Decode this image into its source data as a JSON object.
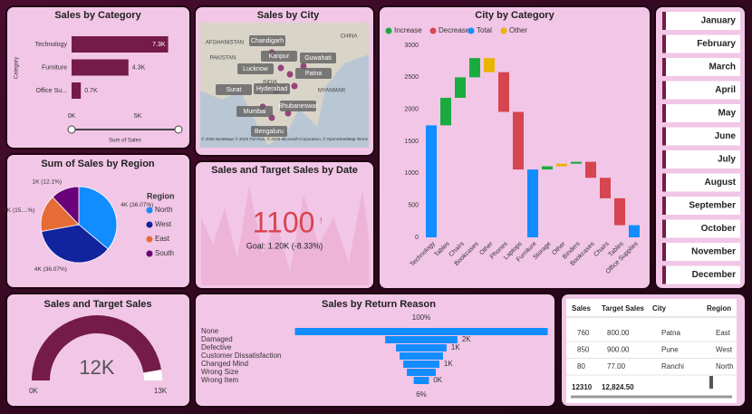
{
  "chart_data": [
    {
      "type": "hbar",
      "title": "Sales by Category",
      "categories": [
        "Technology",
        "Furniture",
        "Office Su..."
      ],
      "values": [
        7300,
        4300,
        700
      ],
      "value_labels": [
        "7.3K",
        "4.3K",
        "0.7K"
      ],
      "color": "#741b47",
      "xlim": [
        0,
        7500
      ],
      "xticks": [
        {
          "value": 0,
          "label": "0K"
        },
        {
          "value": 5000,
          "label": "5K"
        }
      ],
      "xlabel": "Sum of Sales",
      "ylabel": "Category"
    },
    {
      "type": "waterfall",
      "title": "City by Category",
      "legend": [
        {
          "name": "Increase",
          "color": "#1aab40"
        },
        {
          "name": "Decrease",
          "color": "#d64550"
        },
        {
          "name": "Total",
          "color": "#118dff"
        },
        {
          "name": "Other",
          "color": "#e8b400"
        }
      ],
      "categories": [
        "Technology",
        "Tables",
        "Chairs",
        "Bookcases",
        "Other",
        "Phones",
        "Laptops",
        "Furniture",
        "Storage",
        "Other",
        "Binders",
        "Bookcases",
        "Chairs",
        "Tables",
        "Office Supplies"
      ],
      "kinds": [
        "Total",
        "Increase",
        "Increase",
        "Increase",
        "Other",
        "Decrease",
        "Decrease",
        "Total",
        "Increase",
        "Other",
        "Increase",
        "Decrease",
        "Decrease",
        "Decrease",
        "Total"
      ],
      "values": [
        1750,
        430,
        320,
        300,
        -220,
        -620,
        -900,
        1060,
        50,
        40,
        30,
        -250,
        -320,
        -420,
        190
      ],
      "ylim": [
        0,
        3000
      ],
      "yticks": [
        0,
        500,
        1000,
        1500,
        2000,
        2500,
        3000
      ]
    },
    {
      "type": "pie",
      "title": "Sum of Sales by Region",
      "legend_title": "Region",
      "categories": [
        "North",
        "West",
        "East",
        "South"
      ],
      "values": [
        36.07,
        36.07,
        15.76,
        12.1
      ],
      "value_labels": [
        "4K (36.07%)",
        "4K (36.07%)",
        "2K (15....%)",
        "1K (12.1%)"
      ],
      "colors": [
        "#118dff",
        "#12239e",
        "#e66c37",
        "#6b007b"
      ]
    },
    {
      "type": "funnel",
      "title": "Sales by Return Reason",
      "categories": [
        "None",
        "Damaged",
        "Defective",
        "Customer Dissatisfaction",
        "Changed Mind",
        "Wrong Size",
        "Wrong Item"
      ],
      "values": [
        7000,
        2000,
        1400,
        1200,
        1000,
        800,
        420
      ],
      "value_labels": [
        null,
        "2K",
        "1K",
        null,
        "1K",
        null,
        "0K"
      ],
      "percent_labels": [
        "100%",
        "6%"
      ],
      "color": "#118dff"
    },
    {
      "type": "gauge",
      "title": "Sales and Target Sales",
      "value": 12310,
      "value_label": "12K",
      "target": 12824.5,
      "min": 0,
      "max": 13000,
      "min_label": "0K",
      "max_label": "13K",
      "color": "#741b47"
    },
    {
      "type": "kpi",
      "title": "Sales and Target Sales by Date",
      "value": 1100,
      "goal_label": "Goal: 1.20K (-8.33%)",
      "color": "#d64550"
    }
  ],
  "map": {
    "title": "Sales by City",
    "cities": [
      "Chandigarh",
      "Kanpur",
      "Guwahati",
      "Lucknow",
      "Patna",
      "Surat",
      "Hyderabad",
      "Mumbai",
      "Bhubaneswar",
      "Bengaluru"
    ],
    "regions": [
      "AFGHANISTAN",
      "PAKISTAN",
      "CHINA",
      "INDIA",
      "MYANMAR"
    ],
    "attribution": "© 2025 NextMaps © 2025 TomTom, © 2025 Microsoft Corporation, © OpenStreetMap Terms"
  },
  "slicer": {
    "months": [
      "January",
      "February",
      "March",
      "April",
      "May",
      "June",
      "July",
      "August",
      "September",
      "October",
      "November",
      "December"
    ]
  },
  "table": {
    "columns": [
      "Sales",
      "Target Sales",
      "City",
      "Region"
    ],
    "rows": [
      [
        760,
        "800.00",
        "Patna",
        "East"
      ],
      [
        850,
        "900.00",
        "Pune",
        "West"
      ],
      [
        80,
        "77.00",
        "Ranchi",
        "North"
      ]
    ],
    "total": [
      12310,
      "12,824.50"
    ]
  }
}
